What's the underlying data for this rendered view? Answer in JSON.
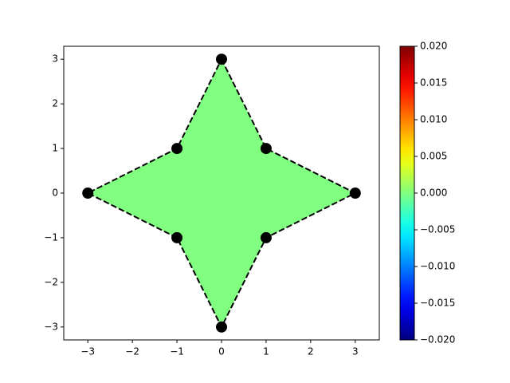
{
  "chart_data": {
    "type": "scatter",
    "x": [
      0,
      1,
      3,
      1,
      0,
      -1,
      -3,
      -1
    ],
    "series": [
      {
        "color": "#000000",
        "values": [
          3,
          1,
          0,
          -1,
          -3,
          -1,
          0,
          1
        ]
      }
    ],
    "line_style": "dashed",
    "closed": true,
    "field_value": 0,
    "colormap": "jet",
    "xlim": [
      -3.54,
      3.54
    ],
    "ylim": [
      -3.29,
      3.29
    ],
    "xticks": [
      {
        "value": -3,
        "label": "−3"
      },
      {
        "value": -2,
        "label": "−2"
      },
      {
        "value": -1,
        "label": "−1"
      },
      0,
      1,
      2,
      3
    ],
    "yticks": [
      {
        "value": -3,
        "label": "−3"
      },
      {
        "value": -2,
        "label": "−2"
      },
      {
        "value": -1,
        "label": "−1"
      },
      0,
      1,
      2,
      3
    ],
    "clim": [
      -0.02,
      0.02
    ],
    "cticks": [
      {
        "value": -0.02,
        "label": "−0.020"
      },
      {
        "value": -0.015,
        "label": "−0.015"
      },
      {
        "value": -0.01,
        "label": "−0.010"
      },
      {
        "value": -0.005,
        "label": "−0.005"
      },
      {
        "value": 0,
        "label": "0.000"
      },
      {
        "value": 0.005,
        "label": "0.005"
      },
      {
        "value": 0.01,
        "label": "0.010"
      },
      {
        "value": 0.015,
        "label": "0.015"
      },
      {
        "value": 0.02,
        "label": "0.020"
      }
    ]
  }
}
